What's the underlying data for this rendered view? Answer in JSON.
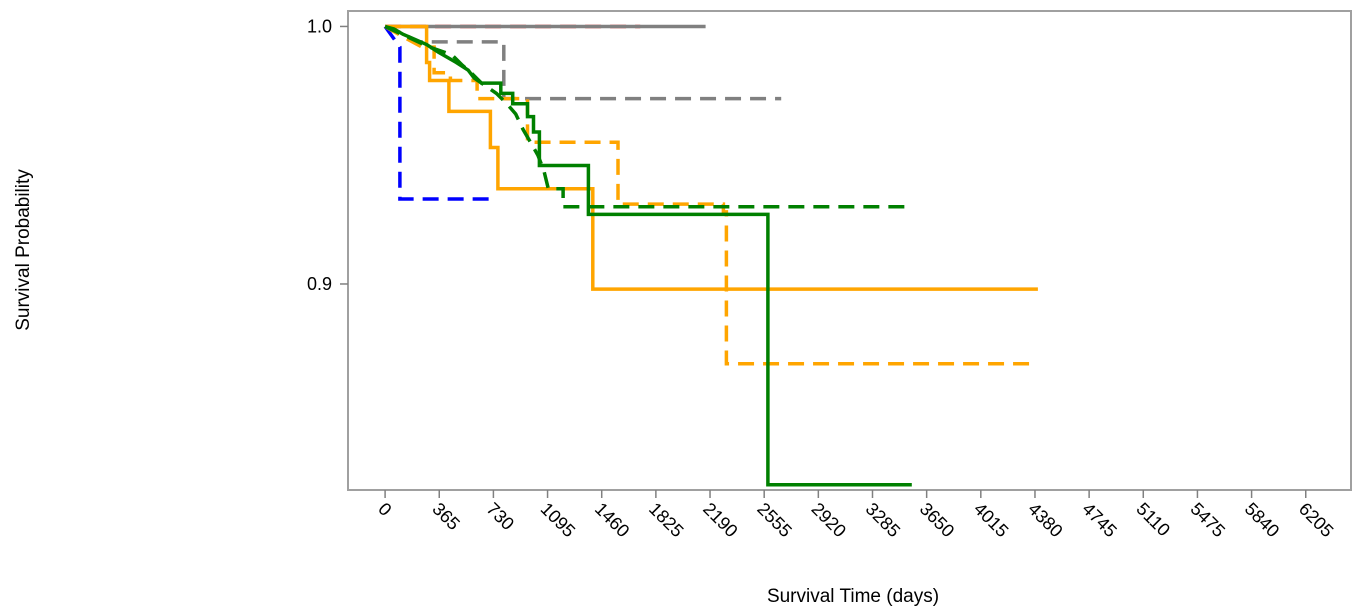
{
  "chart_data": {
    "type": "line",
    "title": "",
    "xlabel": "Survival Time (days)",
    "ylabel": "Survival Probability",
    "xlim": [
      -250,
      6510
    ],
    "ylim": [
      0.82,
      1.006
    ],
    "x_ticks": [
      0,
      365,
      730,
      1095,
      1460,
      1825,
      2190,
      2555,
      2920,
      3285,
      3650,
      4015,
      4380,
      4745,
      5110,
      5475,
      5840,
      6205
    ],
    "x_tick_labels": [
      "0",
      "365",
      "730",
      "1095",
      "1460",
      "1825",
      "2190",
      "2555",
      "2920",
      "3285",
      "3650",
      "4015",
      "4380",
      "4745",
      "5110",
      "5475",
      "5840",
      "6205"
    ],
    "y_ticks": [
      0.9,
      1.0
    ],
    "y_tick_labels": [
      "0.9",
      "1.0"
    ],
    "grid": false,
    "legend": "none",
    "series": [
      {
        "color": "#ff0000",
        "dash": "dashed",
        "points": [
          [
            0,
            1.0
          ],
          [
            1720,
            1.0
          ]
        ]
      },
      {
        "color": "#808080",
        "dash": "solid",
        "points": [
          [
            0,
            1.0
          ],
          [
            2160,
            1.0
          ]
        ]
      },
      {
        "color": "#808080",
        "dash": "dashed",
        "points": [
          [
            0,
            1.0
          ],
          [
            90,
            0.998
          ],
          [
            230,
            0.994
          ],
          [
            800,
            0.994
          ],
          [
            800,
            0.972
          ],
          [
            2670,
            0.972
          ]
        ]
      },
      {
        "color": "#0000ff",
        "dash": "dashed",
        "points": [
          [
            0,
            1.0
          ],
          [
            100,
            0.992
          ],
          [
            100,
            0.933
          ],
          [
            700,
            0.933
          ]
        ]
      },
      {
        "color": "#ffa500",
        "dash": "solid",
        "points": [
          [
            0,
            1.0
          ],
          [
            280,
            1.0
          ],
          [
            280,
            0.986
          ],
          [
            300,
            0.986
          ],
          [
            300,
            0.979
          ],
          [
            430,
            0.979
          ],
          [
            430,
            0.967
          ],
          [
            710,
            0.967
          ],
          [
            710,
            0.953
          ],
          [
            760,
            0.953
          ],
          [
            760,
            0.937
          ],
          [
            1400,
            0.937
          ],
          [
            1400,
            0.898
          ],
          [
            4400,
            0.898
          ]
        ]
      },
      {
        "color": "#ffa500",
        "dash": "dashed",
        "points": [
          [
            0,
            1.0
          ],
          [
            120,
            0.996
          ],
          [
            250,
            0.992
          ],
          [
            330,
            0.992
          ],
          [
            330,
            0.982
          ],
          [
            440,
            0.982
          ],
          [
            440,
            0.979
          ],
          [
            620,
            0.979
          ],
          [
            620,
            0.972
          ],
          [
            960,
            0.972
          ],
          [
            960,
            0.955
          ],
          [
            1570,
            0.955
          ],
          [
            1570,
            0.931
          ],
          [
            2280,
            0.931
          ],
          [
            2280,
            0.928
          ],
          [
            2300,
            0.928
          ],
          [
            2300,
            0.869
          ],
          [
            4400,
            0.869
          ]
        ]
      },
      {
        "color": "#008000",
        "dash": "dashed",
        "points": [
          [
            0,
            1.0
          ],
          [
            150,
            0.996
          ],
          [
            300,
            0.992
          ],
          [
            450,
            0.989
          ],
          [
            520,
            0.985
          ],
          [
            580,
            0.982
          ],
          [
            650,
            0.978
          ],
          [
            750,
            0.974
          ],
          [
            820,
            0.97
          ],
          [
            880,
            0.966
          ],
          [
            930,
            0.96
          ],
          [
            980,
            0.955
          ],
          [
            1030,
            0.95
          ],
          [
            1070,
            0.944
          ],
          [
            1100,
            0.937
          ],
          [
            1200,
            0.937
          ],
          [
            1200,
            0.93
          ],
          [
            3560,
            0.93
          ]
        ]
      },
      {
        "color": "#008000",
        "dash": "solid",
        "points": [
          [
            0,
            1.0
          ],
          [
            60,
            0.999
          ],
          [
            120,
            0.997
          ],
          [
            200,
            0.995
          ],
          [
            280,
            0.993
          ],
          [
            360,
            0.99
          ],
          [
            420,
            0.988
          ],
          [
            480,
            0.986
          ],
          [
            560,
            0.983
          ],
          [
            600,
            0.98
          ],
          [
            650,
            0.978
          ],
          [
            780,
            0.978
          ],
          [
            780,
            0.974
          ],
          [
            860,
            0.974
          ],
          [
            860,
            0.97
          ],
          [
            960,
            0.97
          ],
          [
            960,
            0.965
          ],
          [
            1000,
            0.965
          ],
          [
            1000,
            0.959
          ],
          [
            1040,
            0.959
          ],
          [
            1040,
            0.946
          ],
          [
            1370,
            0.946
          ],
          [
            1370,
            0.927
          ],
          [
            2580,
            0.927
          ],
          [
            2580,
            0.822
          ],
          [
            3550,
            0.822
          ]
        ]
      }
    ]
  }
}
